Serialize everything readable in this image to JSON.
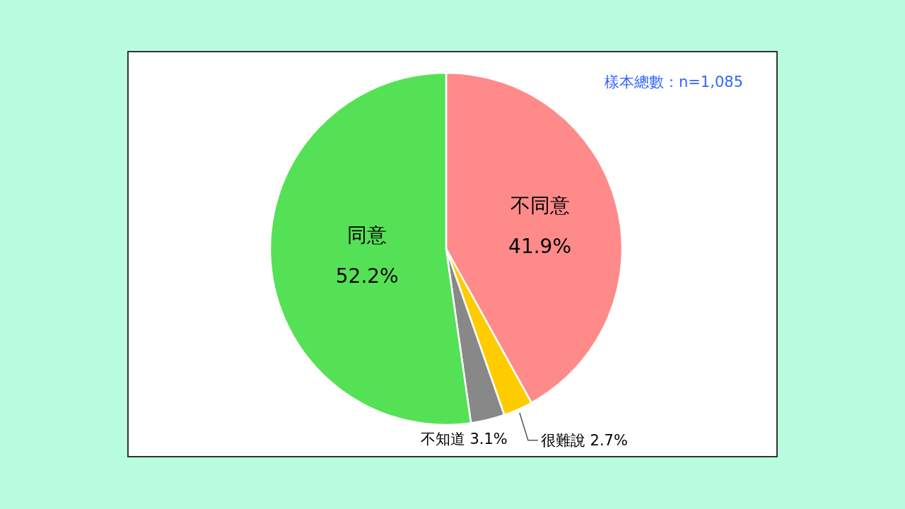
{
  "chart_data": {
    "type": "pie",
    "categories": [
      "不同意",
      "很難說",
      "不知道",
      "同意"
    ],
    "values": [
      41.9,
      2.7,
      3.1,
      52.2
    ],
    "value_labels": [
      "41.9%",
      "2.7%",
      "3.1%",
      "52.2%"
    ],
    "colors": [
      "#ff8a8a",
      "#ffcc00",
      "#888888",
      "#55e155"
    ],
    "annotations": [
      "樣本總數：n=1,085"
    ]
  }
}
